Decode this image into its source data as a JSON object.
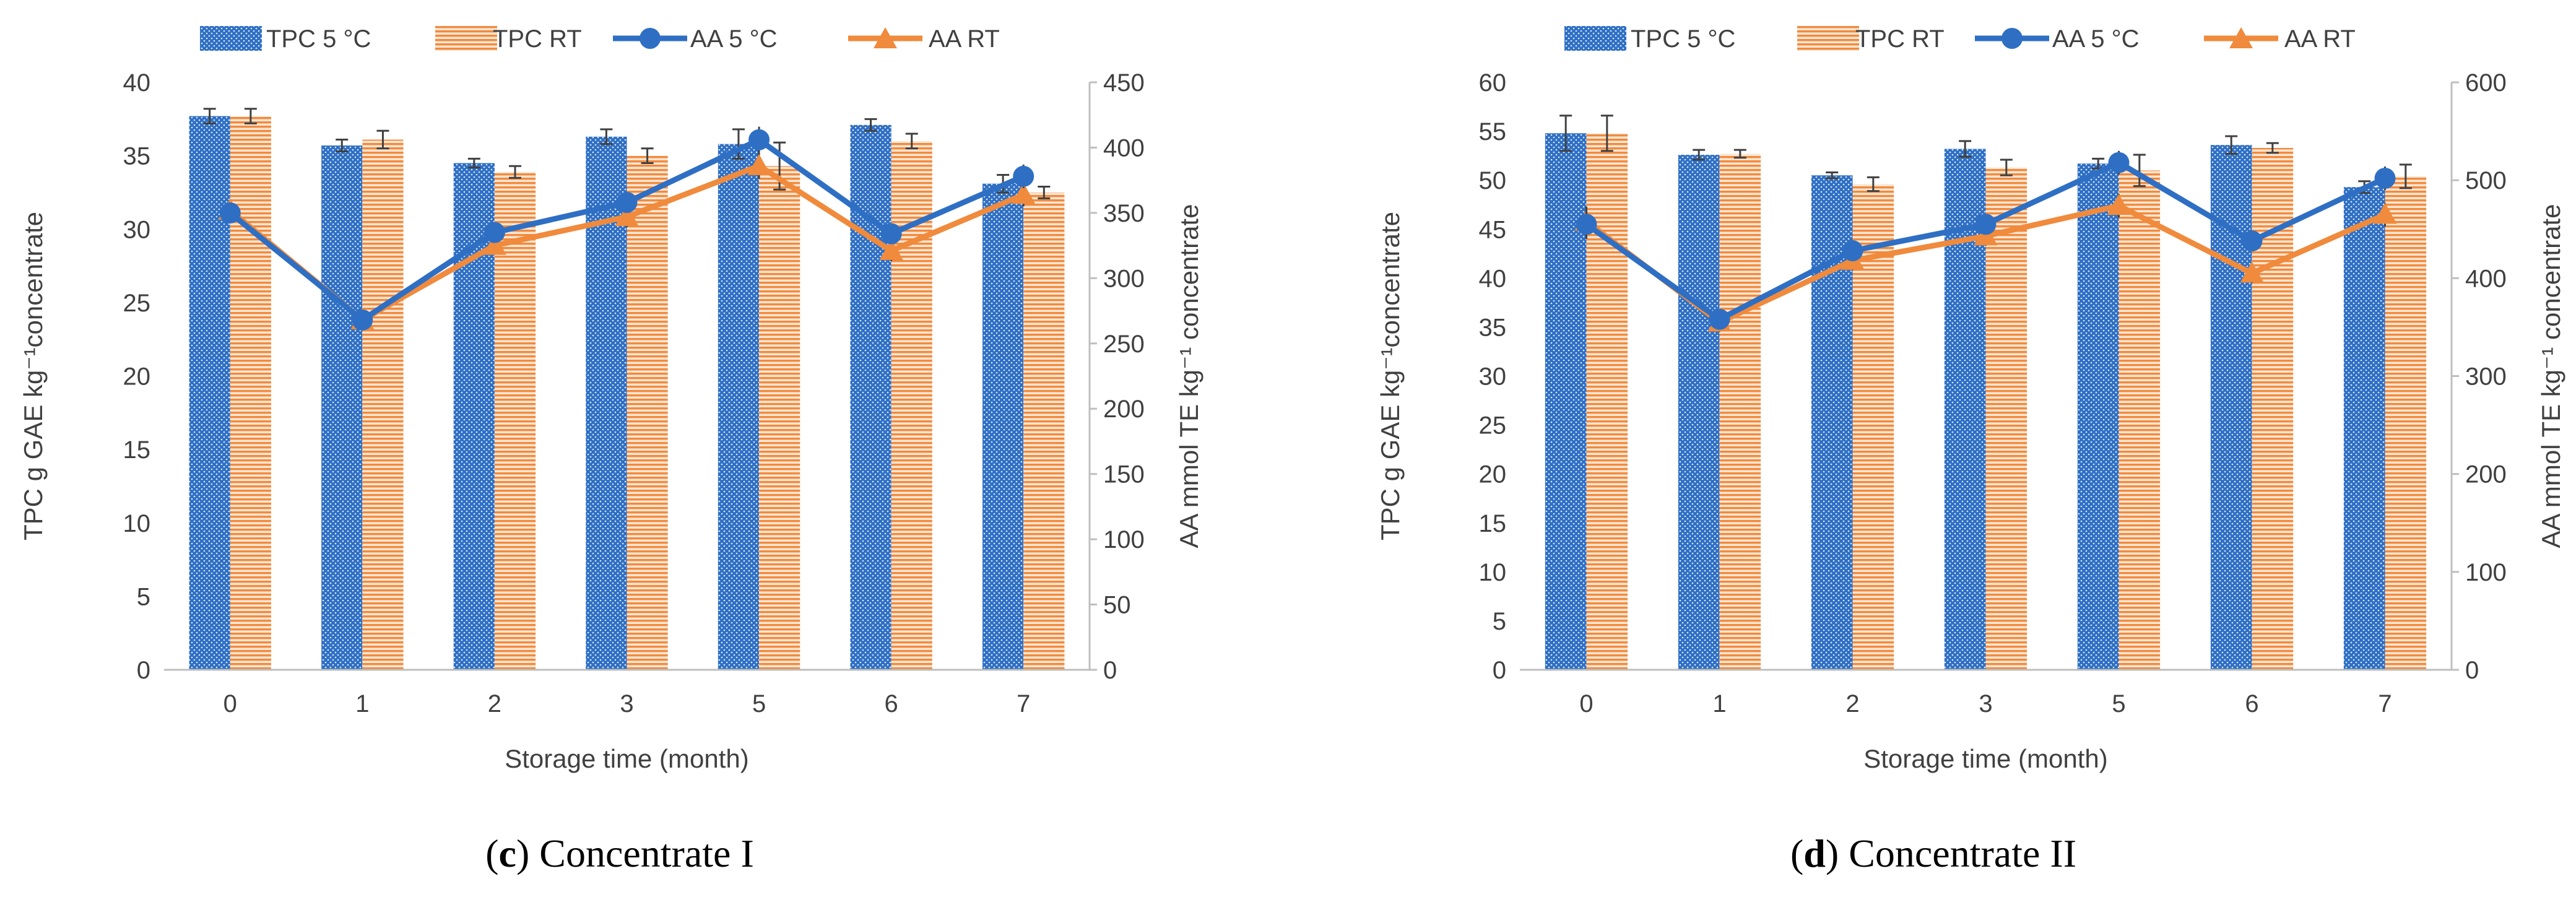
{
  "colors": {
    "tpc5": "#2e6fc4",
    "tpcRT": "#f08a3c",
    "aa5": "#2e6fc4",
    "aaRT": "#f08a3c",
    "axis": "#bfbfbf",
    "text": "#404040"
  },
  "legend": {
    "tpc5": "TPC 5 °C",
    "tpcRT": "TPC RT",
    "aa5": "AA 5 °C",
    "aaRT": "AA RT"
  },
  "chart_data": [
    {
      "type": "bar+line",
      "id": "c",
      "caption_letter": "c",
      "caption_text": ") Concentrate I",
      "categories": [
        "0",
        "1",
        "2",
        "3",
        "5",
        "6",
        "7"
      ],
      "xlabel": "Storage time (month)",
      "ylabel_left": "TPC g GAE kg⁻¹concentrate",
      "ylabel_right": "AA mmol TE kg⁻¹ concentrate",
      "ylim_left": [
        0,
        40
      ],
      "yticks_left": [
        0,
        5,
        10,
        15,
        20,
        25,
        30,
        35,
        40
      ],
      "ylim_right": [
        0,
        450
      ],
      "yticks_right": [
        0,
        50,
        100,
        150,
        200,
        250,
        300,
        350,
        400,
        450
      ],
      "series": [
        {
          "name": "TPC 5 °C",
          "kind": "bar",
          "axis": "left",
          "values": [
            37.7,
            35.7,
            34.5,
            36.3,
            35.8,
            37.1,
            33.1
          ],
          "errors": [
            0.5,
            0.4,
            0.3,
            0.5,
            1.0,
            0.4,
            0.6
          ]
        },
        {
          "name": "TPC RT",
          "kind": "bar",
          "axis": "left",
          "values": [
            37.7,
            36.1,
            33.9,
            35.0,
            34.3,
            36.0,
            32.5
          ],
          "errors": [
            0.5,
            0.6,
            0.4,
            0.5,
            1.6,
            0.5,
            0.4
          ]
        },
        {
          "name": "AA 5 °C",
          "kind": "line",
          "axis": "right",
          "values": [
            350,
            268,
            335,
            358,
            406,
            334,
            378
          ],
          "errors": [
            8,
            6,
            7,
            8,
            10,
            8,
            9
          ]
        },
        {
          "name": "AA RT",
          "kind": "line",
          "axis": "right",
          "values": [
            352,
            268,
            325,
            347,
            386,
            321,
            364
          ],
          "errors": [
            8,
            6,
            7,
            8,
            10,
            8,
            9
          ]
        }
      ]
    },
    {
      "type": "bar+line",
      "id": "d",
      "caption_letter": "d",
      "caption_text": ") Concentrate II",
      "categories": [
        "0",
        "1",
        "2",
        "3",
        "5",
        "6",
        "7"
      ],
      "xlabel": "Storage time (month)",
      "ylabel_left": "TPC g GAE kg⁻¹concentrate",
      "ylabel_right": "AA mmol TE kg⁻¹ concentrate",
      "ylim_left": [
        0,
        60
      ],
      "yticks_left": [
        0,
        5,
        10,
        15,
        20,
        25,
        30,
        35,
        40,
        45,
        50,
        55,
        60
      ],
      "ylim_right": [
        0,
        600
      ],
      "yticks_right": [
        0,
        100,
        200,
        300,
        400,
        500,
        600
      ],
      "series": [
        {
          "name": "TPC 5 °C",
          "kind": "bar",
          "axis": "left",
          "values": [
            54.8,
            52.6,
            50.5,
            53.2,
            51.7,
            53.6,
            49.3
          ],
          "errors": [
            1.8,
            0.5,
            0.3,
            0.8,
            0.5,
            0.9,
            0.6
          ]
        },
        {
          "name": "TPC RT",
          "kind": "bar",
          "axis": "left",
          "values": [
            54.8,
            52.7,
            49.6,
            51.3,
            51.0,
            53.3,
            50.4
          ],
          "errors": [
            1.8,
            0.4,
            0.7,
            0.8,
            1.6,
            0.5,
            1.2
          ]
        },
        {
          "name": "AA 5 °C",
          "kind": "line",
          "axis": "right",
          "values": [
            455,
            358,
            428,
            455,
            518,
            438,
            502
          ],
          "errors": [
            15,
            10,
            10,
            10,
            12,
            10,
            12
          ]
        },
        {
          "name": "AA RT",
          "kind": "line",
          "axis": "right",
          "values": [
            458,
            355,
            418,
            443,
            474,
            405,
            465
          ],
          "errors": [
            15,
            10,
            10,
            10,
            12,
            10,
            12
          ]
        }
      ]
    }
  ]
}
